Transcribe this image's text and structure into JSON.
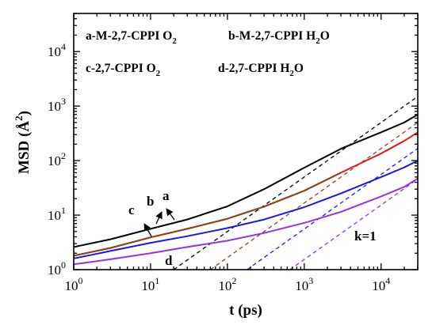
{
  "chart_data": {
    "type": "line",
    "xscale": "log",
    "yscale": "log",
    "xlim": [
      1,
      30000
    ],
    "ylim": [
      1,
      50000
    ],
    "xlabel": "t (ps)",
    "ylabel": {
      "prefix": "MSD (",
      "unit": "Å",
      "exp": "2",
      "suffix": ")"
    },
    "xticks": [
      {
        "value": 1,
        "base": "10",
        "exp": "0"
      },
      {
        "value": 10,
        "base": "10",
        "exp": "1"
      },
      {
        "value": 100,
        "base": "10",
        "exp": "2"
      },
      {
        "value": 1000,
        "base": "10",
        "exp": "3"
      },
      {
        "value": 10000,
        "base": "10",
        "exp": "4"
      }
    ],
    "yticks": [
      {
        "value": 1,
        "base": "10",
        "exp": "0"
      },
      {
        "value": 10,
        "base": "10",
        "exp": "1"
      },
      {
        "value": 100,
        "base": "10",
        "exp": "2"
      },
      {
        "value": 1000,
        "base": "10",
        "exp": "3"
      },
      {
        "value": 10000,
        "base": "10",
        "exp": "4"
      }
    ],
    "legend": [
      {
        "label": "a-M-2,7-CPPI O",
        "sub": "2"
      },
      {
        "label": "b-M-2,7-CPPI H",
        "sub": "2",
        "tail": "O"
      },
      {
        "label": "c-2,7-CPPI O",
        "sub": "2"
      },
      {
        "label": "d-2,7-CPPI H",
        "sub": "2",
        "tail": "O"
      }
    ],
    "series": [
      {
        "key": "a",
        "color": "#000000",
        "x": [
          1,
          3,
          10,
          30,
          100,
          300,
          1000,
          3000,
          10000,
          20000,
          30000
        ],
        "y": [
          2.6,
          3.6,
          5.6,
          8.3,
          14.5,
          30,
          74,
          165,
          330,
          500,
          700
        ]
      },
      {
        "key": "b",
        "color": "#e8141b",
        "x": [
          1,
          3,
          10,
          30,
          100,
          300,
          1000,
          3000,
          10000,
          20000,
          30000
        ],
        "y": [
          1.8,
          2.5,
          3.9,
          5.6,
          8.6,
          14.3,
          28,
          60,
          135,
          230,
          330
        ]
      },
      {
        "key": "c",
        "color": "#8b4513",
        "x": [
          1,
          3,
          10,
          30,
          100,
          300,
          1000,
          3000
        ],
        "y": [
          1.8,
          2.5,
          3.9,
          5.6,
          8.6,
          14.3,
          28,
          60
        ]
      },
      {
        "key": "d",
        "color": "#1a1ae6",
        "x": [
          1,
          3,
          10,
          30,
          100,
          300,
          1000,
          3000,
          10000,
          20000,
          30000
        ],
        "y": [
          1.6,
          2.2,
          3.1,
          4.1,
          5.8,
          8.3,
          14,
          25,
          50,
          75,
          100
        ]
      },
      {
        "key": "e",
        "color": "#9a30e0",
        "x": [
          1,
          3,
          10,
          30,
          100,
          300,
          1000,
          3000,
          10000,
          20000,
          30000
        ],
        "y": [
          1.25,
          1.55,
          2.0,
          2.6,
          3.4,
          4.7,
          7.2,
          11.5,
          22,
          33,
          47
        ]
      }
    ],
    "reference_lines": [
      {
        "slope": 1,
        "color": "#000000",
        "x": [
          20,
          30000
        ],
        "y": [
          1,
          1500
        ]
      },
      {
        "slope": 1,
        "color": "#8b4513",
        "x": [
          60,
          30000
        ],
        "y": [
          1,
          500
        ]
      },
      {
        "slope": 1,
        "color": "#1a1ae6",
        "x": [
          180,
          30000
        ],
        "y": [
          1,
          167
        ]
      },
      {
        "slope": 1,
        "color": "#9a30e0",
        "x": [
          650,
          30000
        ],
        "y": [
          1,
          46
        ]
      }
    ],
    "annotations": [
      {
        "text": "a"
      },
      {
        "text": "b"
      },
      {
        "text": "c"
      },
      {
        "text": "d"
      },
      {
        "text": "k=1"
      }
    ]
  }
}
